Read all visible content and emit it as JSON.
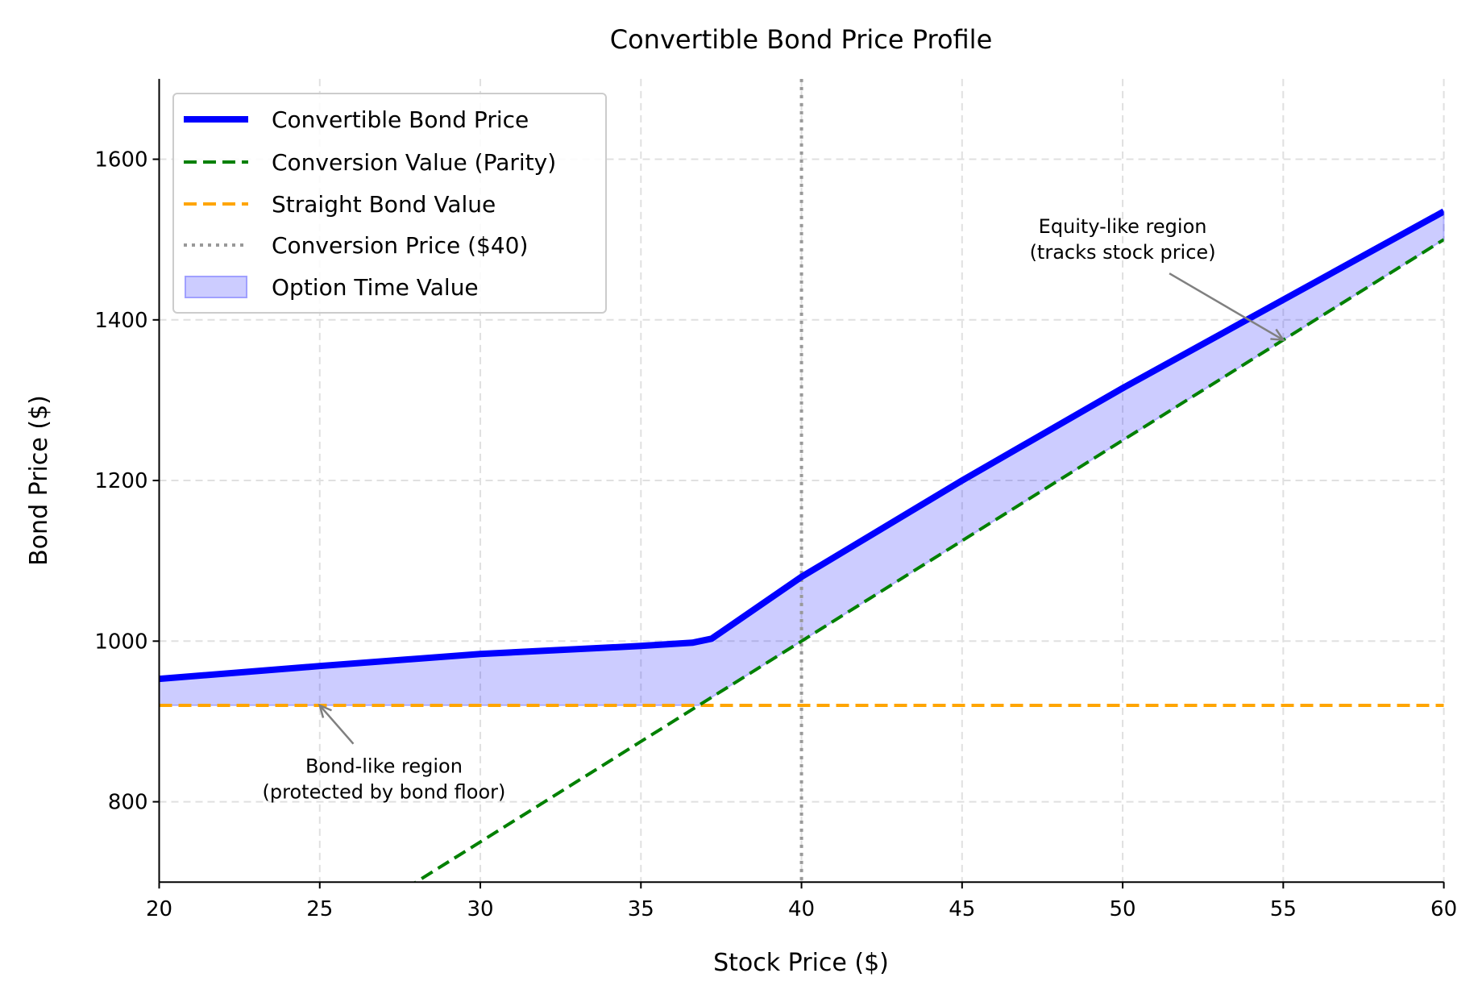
{
  "chart_data": {
    "type": "line",
    "title": "Convertible Bond Price Profile",
    "xlabel": "Stock Price ($)",
    "ylabel": "Bond Price ($)",
    "xlim": [
      20,
      60
    ],
    "ylim": [
      700,
      1700
    ],
    "xticks": [
      20,
      25,
      30,
      35,
      40,
      45,
      50,
      55,
      60
    ],
    "yticks": [
      800,
      1000,
      1200,
      1400,
      1600
    ],
    "grid": true,
    "legend_position": "top-left",
    "series": [
      {
        "name": "Convertible Bond Price",
        "style": "solid",
        "color": "#0000ff",
        "x": [
          20,
          25,
          30,
          35,
          36.6,
          37.2,
          40,
          45,
          50,
          55,
          60
        ],
        "y": [
          953,
          969,
          984,
          994,
          998,
          1003,
          1080,
          1200,
          1315,
          1425,
          1535
        ]
      },
      {
        "name": "Conversion Value (Parity)",
        "style": "dashed",
        "color": "#008000",
        "x": [
          20,
          60
        ],
        "y": [
          500,
          1500
        ]
      },
      {
        "name": "Straight Bond Value",
        "style": "dashed",
        "color": "#ffa500",
        "x": [
          20,
          60
        ],
        "y": [
          920,
          920
        ]
      },
      {
        "name": "Conversion Price ($40)",
        "style": "dotted",
        "color": "#999999",
        "vertical_x": 40
      },
      {
        "name": "Option Time Value",
        "style": "fill",
        "color": "#ccccff",
        "between": "Convertible Bond Price and max(Conversion Value, Straight Bond Value)"
      }
    ],
    "annotations": [
      {
        "text": [
          "Equity-like region",
          "(tracks stock price)"
        ],
        "xy": [
          55,
          1375
        ],
        "xytext": [
          50,
          1500
        ]
      },
      {
        "text": [
          "Bond-like region",
          "(protected by bond floor)"
        ],
        "xy": [
          25,
          920
        ],
        "xytext": [
          27,
          828
        ]
      }
    ]
  }
}
